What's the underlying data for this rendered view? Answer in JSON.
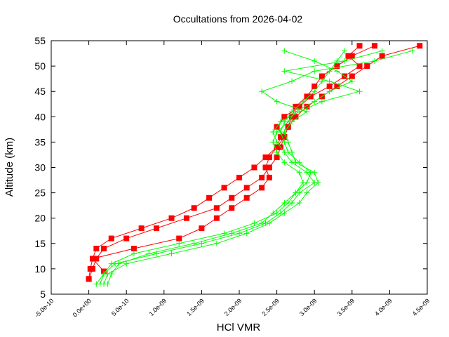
{
  "chart_data": {
    "type": "line",
    "title": "Occultations from 2026-04-02",
    "xlabel": "HCl VMR",
    "ylabel": "Altitude (km)",
    "xlim": [
      -5e-10,
      4.5e-09
    ],
    "ylim": [
      5,
      55
    ],
    "grid": false,
    "x_ticks": [
      "-5.0e-10",
      "0.0e+00",
      "5.0e-10",
      "1.0e-09",
      "1.5e-09",
      "2.0e-09",
      "2.5e-09",
      "3.0e-09",
      "3.5e-09",
      "4.0e-09",
      "4.5e-09"
    ],
    "y_ticks": [
      "5",
      "10",
      "15",
      "20",
      "25",
      "30",
      "35",
      "40",
      "45",
      "50",
      "55"
    ],
    "colors": {
      "red_series": "#ff0000",
      "green_series": "#00ff00"
    },
    "series": [
      {
        "color": "#ff0000",
        "marker": "square",
        "altitude": [
          8,
          10,
          12,
          14,
          16,
          18,
          20,
          22,
          24,
          26,
          28,
          30,
          32,
          34,
          36,
          38,
          40,
          42,
          44,
          46,
          48,
          50,
          52,
          54
        ],
        "vmr": [
          0.0,
          2e-11,
          5e-11,
          1e-10,
          3e-10,
          7e-10,
          1.1e-09,
          1.4e-09,
          1.6e-09,
          1.8e-09,
          2e-09,
          2.2e-09,
          2.35e-09,
          2.5e-09,
          2.55e-09,
          2.65e-09,
          2.7e-09,
          2.75e-09,
          2.9e-09,
          3e-09,
          3.1e-09,
          3.3e-09,
          3.5e-09,
          3.8e-09
        ]
      },
      {
        "color": "#ff0000",
        "marker": "square",
        "altitude": [
          8,
          10,
          12,
          14,
          16,
          18,
          20,
          22,
          24,
          26,
          28,
          30,
          32,
          34,
          36,
          38,
          40,
          42,
          44,
          46,
          48,
          50,
          52,
          54
        ],
        "vmr": [
          0.0,
          5e-11,
          1e-10,
          2e-10,
          5e-10,
          9e-10,
          1.3e-09,
          1.7e-09,
          1.9e-09,
          2.1e-09,
          2.3e-09,
          2.4e-09,
          2.5e-09,
          2.55e-09,
          2.6e-09,
          2.65e-09,
          2.75e-09,
          2.9e-09,
          3.1e-09,
          3.3e-09,
          3.5e-09,
          3.7e-09,
          3.9e-09,
          4.4e-09
        ]
      },
      {
        "color": "#ff0000",
        "marker": "square",
        "altitude": [
          9.5,
          12,
          14,
          16,
          18,
          20,
          22,
          24,
          26,
          28,
          30,
          32,
          34,
          36,
          38,
          40,
          42,
          44,
          46,
          48,
          50,
          52,
          54
        ],
        "vmr": [
          2e-10,
          5e-11,
          6e-10,
          1.2e-09,
          1.5e-09,
          1.7e-09,
          1.9e-09,
          2.1e-09,
          2.3e-09,
          2.4e-09,
          2.35e-09,
          2.4e-09,
          2.5e-09,
          2.6e-09,
          2.5e-09,
          2.6e-09,
          2.8e-09,
          2.95e-09,
          3.2e-09,
          3.4e-09,
          3.6e-09,
          3.45e-09,
          3.6e-09
        ]
      },
      {
        "color": "#00ff00",
        "marker": "plus",
        "altitude": [
          7,
          9,
          11,
          13,
          15,
          17,
          19,
          21,
          23,
          25,
          27,
          29,
          31,
          33,
          35,
          37,
          39,
          41,
          43,
          45,
          47,
          49,
          51,
          53
        ],
        "vmr": [
          1.5e-10,
          2e-10,
          3e-10,
          6e-10,
          1.2e-09,
          1.8e-09,
          2.2e-09,
          2.5e-09,
          2.65e-09,
          2.75e-09,
          2.9e-09,
          2.95e-09,
          2.8e-09,
          2.65e-09,
          2.6e-09,
          2.55e-09,
          2.6e-09,
          2.7e-09,
          2.85e-09,
          3e-09,
          3.1e-09,
          3.2e-09,
          3.3e-09,
          3.4e-09
        ]
      },
      {
        "color": "#00ff00",
        "marker": "plus",
        "altitude": [
          7,
          9,
          11,
          13,
          15,
          17,
          19,
          21,
          23,
          25,
          27,
          29,
          31,
          33,
          35,
          37,
          39,
          41,
          43,
          45,
          47,
          49,
          51,
          53
        ],
        "vmr": [
          1e-10,
          2e-10,
          3.5e-10,
          9e-10,
          1.5e-09,
          2e-09,
          2.35e-09,
          2.55e-09,
          2.7e-09,
          2.8e-09,
          3e-09,
          2.9e-09,
          2.7e-09,
          2.6e-09,
          2.5e-09,
          2.45e-09,
          2.55e-09,
          2.8e-09,
          3.1e-09,
          3.6e-09,
          3.2e-09,
          2.6e-09,
          3.4e-09,
          3.9e-09
        ]
      },
      {
        "color": "#00ff00",
        "marker": "plus",
        "altitude": [
          7,
          9,
          11,
          13,
          15,
          17,
          19,
          21,
          23,
          25,
          27,
          29,
          31,
          33,
          35,
          37,
          39,
          41,
          43,
          45,
          47,
          49,
          51,
          53
        ],
        "vmr": [
          2e-10,
          2.5e-10,
          5e-10,
          1.1e-09,
          1.7e-09,
          2.1e-09,
          2.4e-09,
          2.6e-09,
          2.8e-09,
          2.9e-09,
          3.05e-09,
          3e-09,
          2.75e-09,
          2.7e-09,
          2.65e-09,
          2.6e-09,
          2.7e-09,
          2.9e-09,
          2.5e-09,
          2.3e-09,
          2.7e-09,
          3e-09,
          3.8e-09,
          4.3e-09
        ]
      },
      {
        "color": "#00ff00",
        "marker": "plus",
        "altitude": [
          7,
          9,
          11,
          13,
          15,
          17,
          19,
          21,
          23,
          25,
          27,
          29,
          31,
          33,
          35,
          37,
          39,
          41,
          43,
          45,
          47,
          49,
          51,
          53
        ],
        "vmr": [
          2.5e-10,
          3e-10,
          4e-10,
          8e-10,
          1.4e-09,
          1.9e-09,
          2.3e-09,
          2.45e-09,
          2.6e-09,
          2.75e-09,
          2.85e-09,
          2.8e-09,
          2.6e-09,
          2.5e-09,
          2.45e-09,
          2.5e-09,
          2.65e-09,
          2.75e-09,
          3e-09,
          3.2e-09,
          3.5e-09,
          3.3e-09,
          3e-09,
          2.6e-09
        ]
      }
    ]
  }
}
